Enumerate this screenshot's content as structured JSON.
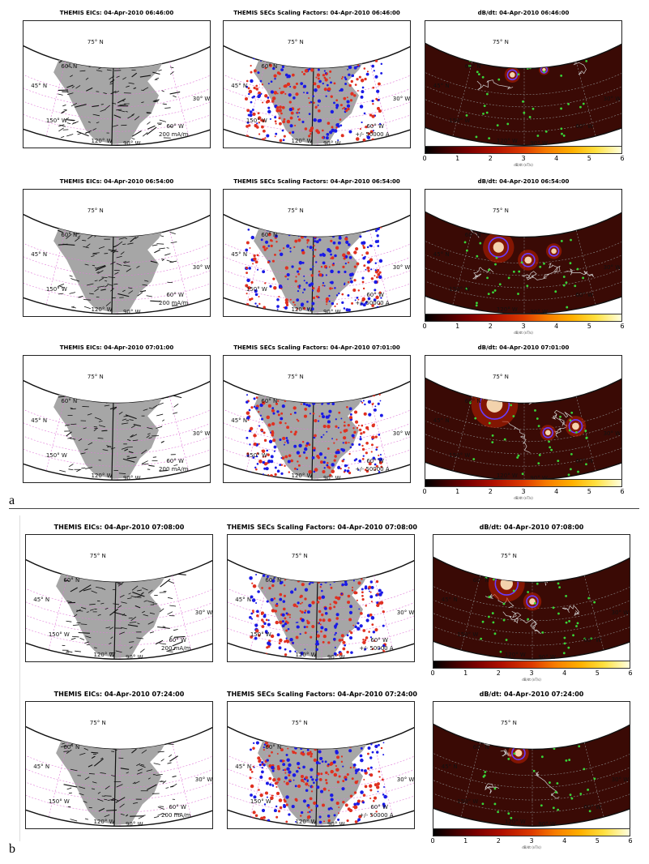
{
  "labels": {
    "a": "a",
    "b": "b"
  },
  "text": {
    "lat75": "75° N",
    "lat60": "60° N",
    "lat45": "45° N",
    "lon150": "150° W",
    "lon120": "120° W",
    "lon90": "90° W",
    "lon60": "60° W",
    "lon30": "30° W",
    "eic_scale": "200 mA/m",
    "sec_scale": "+/- 50000 A",
    "cbar_unit": "dB/dt (nT/s)"
  },
  "colorbar": {
    "ticks": [
      "0",
      "1",
      "2",
      "3",
      "4",
      "5",
      "6"
    ]
  },
  "colors": {
    "positive": "#e03020",
    "negative": "#1a1ae6",
    "land": "#a6a6a6",
    "stations": "#39d639",
    "grid": "#e07ad8"
  },
  "rows": [
    {
      "eic_title": "THEMIS EICs: 04-Apr-2010 06:46:00",
      "sec_title": "THEMIS SECs Scaling Factors: 04-Apr-2010 06:46:00",
      "dbdt_title": "dB/dt: 04-Apr-2010 06:46:00"
    },
    {
      "eic_title": "THEMIS EICs: 04-Apr-2010 06:54:00",
      "sec_title": "THEMIS SECs Scaling Factors: 04-Apr-2010 06:54:00",
      "dbdt_title": "dB/dt: 04-Apr-2010 06:54:00"
    },
    {
      "eic_title": "THEMIS EICs: 04-Apr-2010 07:01:00",
      "sec_title": "THEMIS SECs Scaling Factors: 04-Apr-2010 07:01:00",
      "dbdt_title": "dB/dt: 04-Apr-2010 07:01:00"
    },
    {
      "eic_title": "THEMIS EICs: 04-Apr-2010 07:08:00",
      "sec_title": "THEMIS SECs Scaling Factors: 04-Apr-2010 07:08:00",
      "dbdt_title": "dB/dt: 04-Apr-2010 07:08:00"
    },
    {
      "eic_title": "THEMIS EICs: 04-Apr-2010 07:24:00",
      "sec_title": "THEMIS SECs Scaling Factors: 04-Apr-2010 07:24:00",
      "dbdt_title": "dB/dt: 04-Apr-2010 07:24:00"
    }
  ]
}
